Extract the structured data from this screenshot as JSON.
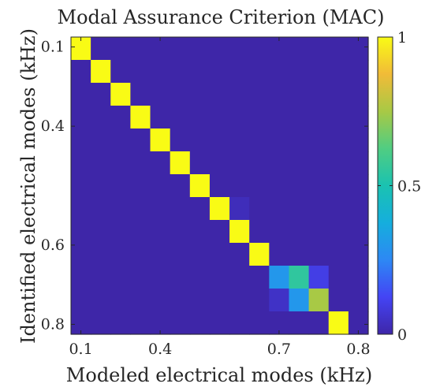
{
  "chart_data": {
    "type": "heatmap",
    "title": "Modal Assurance Criterion (MAC)",
    "xlabel": "Modeled electrical modes (kHz)",
    "ylabel": "Identified electrical modes (kHz)",
    "x_tick_labels": [
      "0.1",
      "0.4",
      "0.7",
      "0.8"
    ],
    "x_tick_indices": [
      0,
      4,
      10,
      14
    ],
    "y_tick_labels": [
      "0.1",
      "0.4",
      "0.6",
      "0.8"
    ],
    "y_tick_indices": [
      0,
      4,
      10,
      14
    ],
    "colorbar": {
      "min": 0,
      "max": 1,
      "ticks": [
        0,
        0.5,
        1
      ],
      "tick_labels": [
        "0",
        "0.5",
        "1"
      ],
      "colormap": "parula"
    },
    "values": [
      [
        1,
        0,
        0,
        0,
        0,
        0,
        0,
        0,
        0,
        0,
        0,
        0,
        0,
        0,
        0
      ],
      [
        0,
        1,
        0,
        0,
        0,
        0,
        0,
        0,
        0,
        0,
        0,
        0,
        0,
        0,
        0
      ],
      [
        0,
        0,
        1,
        0,
        0,
        0,
        0,
        0,
        0,
        0,
        0,
        0,
        0,
        0,
        0
      ],
      [
        0,
        0,
        0,
        1,
        0,
        0,
        0,
        0,
        0,
        0,
        0,
        0,
        0,
        0,
        0
      ],
      [
        0,
        0,
        0,
        0,
        1,
        0,
        0,
        0,
        0,
        0,
        0,
        0,
        0,
        0,
        0
      ],
      [
        0,
        0,
        0,
        0,
        0,
        1,
        0,
        0,
        0,
        0,
        0,
        0,
        0,
        0,
        0
      ],
      [
        0,
        0,
        0,
        0,
        0,
        0,
        1,
        0,
        0,
        0,
        0,
        0,
        0,
        0,
        0
      ],
      [
        0,
        0,
        0,
        0,
        0,
        0,
        0,
        1,
        0.03,
        0,
        0,
        0,
        0,
        0,
        0
      ],
      [
        0,
        0,
        0,
        0,
        0,
        0,
        0,
        0,
        1,
        0,
        0,
        0,
        0,
        0,
        0
      ],
      [
        0,
        0,
        0,
        0,
        0,
        0,
        0,
        0,
        0,
        1,
        0,
        0,
        0,
        0,
        0
      ],
      [
        0,
        0,
        0,
        0,
        0,
        0,
        0,
        0,
        0,
        0,
        0.3,
        0.55,
        0.1,
        0,
        0
      ],
      [
        0,
        0,
        0,
        0,
        0,
        0,
        0,
        0,
        0,
        0,
        0.05,
        0.3,
        0.75,
        0,
        0
      ],
      [
        0,
        0,
        0,
        0,
        0,
        0,
        0,
        0,
        0,
        0,
        0,
        0,
        0,
        1,
        0
      ]
    ]
  }
}
